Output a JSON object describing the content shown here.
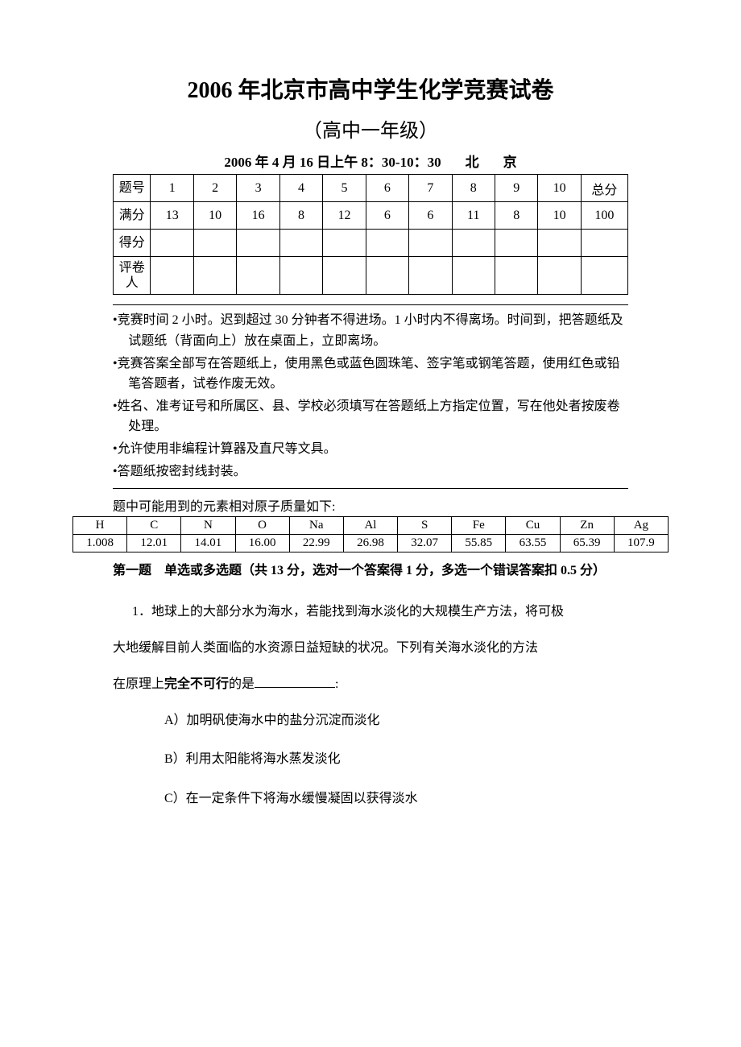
{
  "title": {
    "main": "2006 年北京市高中学生化学竞赛试卷",
    "sub": "（高中一年级）",
    "date_prefix": "2006 年 4 月 16 日上午 8：30-10：30",
    "city1": "北",
    "city2": "京"
  },
  "score_table": {
    "labels": {
      "question_no": "题号",
      "full_score": "满分",
      "score": "得分",
      "reviewer": "评卷人",
      "total": "总分"
    },
    "cols": [
      "1",
      "2",
      "3",
      "4",
      "5",
      "6",
      "7",
      "8",
      "9",
      "10"
    ],
    "full_scores": [
      "13",
      "10",
      "16",
      "8",
      "12",
      "6",
      "6",
      "11",
      "8",
      "10"
    ],
    "total_score": "100"
  },
  "rules": [
    "竞赛时间 2 小时。迟到超过 30 分钟者不得进场。1 小时内不得离场。时间到，把答题纸及试题纸（背面向上）放在桌面上，立即离场。",
    "竞赛答案全部写在答题纸上，使用黑色或蓝色圆珠笔、签字笔或钢笔答题，使用红色或铅笔答题者，试卷作废无效。",
    "姓名、准考证号和所属区、县、学校必须填写在答题纸上方指定位置，写在他处者按废卷处理。",
    "允许使用非编程计算器及直尺等文具。",
    "答题纸按密封线封装。"
  ],
  "atomic": {
    "caption": "题中可能用到的元素相对原子质量如下:",
    "elements": [
      "H",
      "C",
      "N",
      "O",
      "Na",
      "Al",
      "S",
      "Fe",
      "Cu",
      "Zn",
      "Ag"
    ],
    "masses": [
      "1.008",
      "12.01",
      "14.01",
      "16.00",
      "22.99",
      "26.98",
      "32.07",
      "55.85",
      "63.55",
      "65.39",
      "107.9"
    ]
  },
  "section1": {
    "heading": "第一题　单选或多选题（共 13 分，选对一个答案得 1 分，多选一个错误答案扣 0.5 分）",
    "q1": {
      "stem1": "1．地球上的大部分水为海水，若能找到海水淡化的大规模生产方法，将可极",
      "stem2": "大地缓解目前人类面临的水资源日益短缺的状况。下列有关海水淡化的方法",
      "stem3_prefix": "在原理上",
      "stem3_bold": "完全不可行",
      "stem3_suffix": "的是",
      "stem3_colon": ":",
      "options": {
        "a": "A）加明矾使海水中的盐分沉淀而淡化",
        "b": "B）利用太阳能将海水蒸发淡化",
        "c": "C）在一定条件下将海水缓慢凝固以获得淡水"
      }
    }
  }
}
